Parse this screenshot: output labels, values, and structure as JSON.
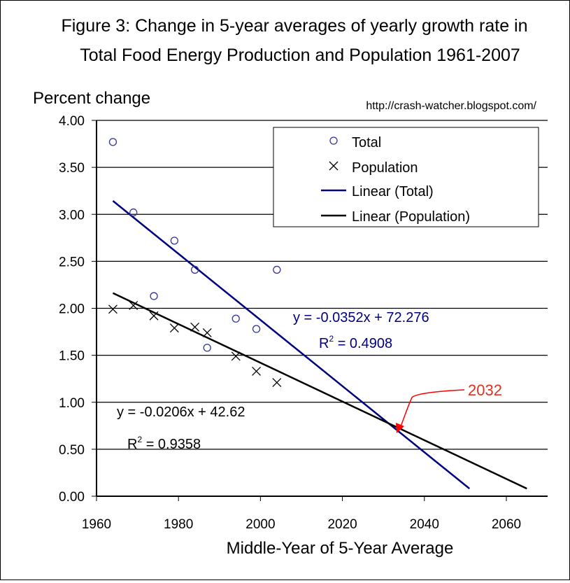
{
  "chart_data": {
    "type": "scatter",
    "title_line1": "Figure 3: Change in 5-year averages of yearly growth rate in",
    "title_line2": "Total Food Energy Production and Population 1961-2007",
    "ylabel": "Percent change",
    "xlabel": "Middle-Year of 5-Year Average",
    "source_url": "http://crash-watcher.blogspot.com/",
    "xlim": [
      1960,
      2070
    ],
    "ylim": [
      0,
      4
    ],
    "x_ticks": [
      "1960",
      "1980",
      "2000",
      "2020",
      "2040",
      "2060"
    ],
    "y_ticks": [
      "0.00",
      "0.50",
      "1.00",
      "1.50",
      "2.00",
      "2.50",
      "3.00",
      "3.50",
      "4.00"
    ],
    "grid": "horizontal",
    "legend_position": "top-right",
    "series": [
      {
        "name": "Total",
        "marker": "circle",
        "color": "#333399",
        "points": [
          [
            1964,
            3.77
          ],
          [
            1969,
            3.02
          ],
          [
            1974,
            2.13
          ],
          [
            1979,
            2.72
          ],
          [
            1984,
            2.41
          ],
          [
            1987,
            1.58
          ],
          [
            1994,
            1.89
          ],
          [
            1999,
            1.78
          ],
          [
            2004,
            2.41
          ]
        ]
      },
      {
        "name": "Population",
        "marker": "x",
        "color": "#000000",
        "points": [
          [
            1964,
            1.99
          ],
          [
            1969,
            2.03
          ],
          [
            1974,
            1.92
          ],
          [
            1979,
            1.79
          ],
          [
            1984,
            1.8
          ],
          [
            1987,
            1.74
          ],
          [
            1994,
            1.49
          ],
          [
            1999,
            1.33
          ],
          [
            2004,
            1.21
          ]
        ]
      }
    ],
    "trendlines": [
      {
        "name": "Linear (Total)",
        "color": "#000080",
        "slope": -0.0352,
        "intercept": 72.276,
        "x_range": [
          1964,
          2051
        ],
        "equation": "y = -0.0352x + 72.276",
        "r2_label": "R",
        "r2_sup": "2",
        "r2_value": " = 0.4908"
      },
      {
        "name": "Linear (Population)",
        "color": "#000000",
        "slope": -0.0206,
        "intercept": 42.62,
        "x_range": [
          1964,
          2065
        ],
        "equation": "y = -0.0206x + 42.62",
        "r2_label": "R",
        "r2_sup": "2",
        "r2_value": " = 0.9358"
      }
    ],
    "annotation": {
      "text": "2032",
      "color": "#e0301e",
      "x": 2032.5
    }
  }
}
